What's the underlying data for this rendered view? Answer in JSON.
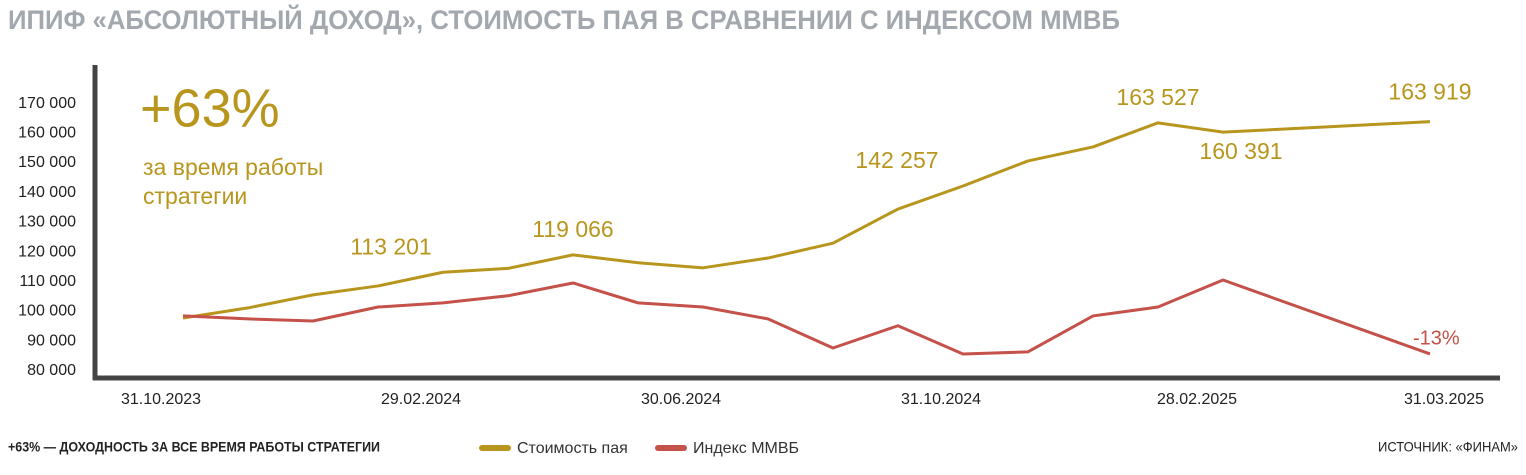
{
  "chart_data": {
    "type": "line",
    "title": "ИПИФ «АБСОЛЮТНЫЙ ДОХОД», СТОИМОСТЬ ПАЯ В СРАВНЕНИИ С ИНДЕКСОМ ММВБ",
    "annotations": {
      "big": "+63%",
      "sub1": "за время работы",
      "sub2": "стратегии",
      "index_change": "-13%"
    },
    "footnote": "+63% — ДОХОДНОСТЬ ЗА ВСЕ ВРЕМЯ РАБОТЫ СТРАТЕГИИ",
    "source": "ИСТОЧНИК: «ФИНАМ»",
    "categories": [
      "31.10.2023",
      null,
      null,
      null,
      "29.02.2024",
      null,
      null,
      null,
      "30.06.2024",
      null,
      null,
      null,
      "31.10.2024",
      null,
      null,
      null,
      "28.02.2025",
      "31.03.2025"
    ],
    "series": [
      {
        "name": "Стоимость пая",
        "color": "#b8961e",
        "values": [
          97800,
          101200,
          105600,
          108600,
          113201,
          114500,
          119066,
          116400,
          114700,
          118000,
          123000,
          134500,
          142257,
          150700,
          155400,
          163527,
          160391,
          163919
        ],
        "value_labels": [
          null,
          null,
          null,
          null,
          "113 201",
          null,
          "119 066",
          null,
          null,
          null,
          null,
          null,
          "142 257",
          null,
          null,
          "163 527",
          "160 391",
          "163 919"
        ]
      },
      {
        "name": "Индекс ММВБ",
        "color": "#c4514a",
        "values": [
          98500,
          97500,
          96800,
          101500,
          102900,
          105300,
          109600,
          102900,
          101500,
          97500,
          87700,
          95200,
          85700,
          86400,
          98500,
          101500,
          110600,
          85700
        ]
      }
    ],
    "ylim": [
      77600,
      183000
    ],
    "yticks": [
      {
        "value": 80000,
        "label": "80 000"
      },
      {
        "value": 90000,
        "label": "90 000"
      },
      {
        "value": 100000,
        "label": "100 000"
      },
      {
        "value": 110000,
        "label": "110 000"
      },
      {
        "value": 120000,
        "label": "120 000"
      },
      {
        "value": 130000,
        "label": "130 000"
      },
      {
        "value": 140000,
        "label": "140 000"
      },
      {
        "value": 150000,
        "label": "150 000"
      },
      {
        "value": 160000,
        "label": "160 000"
      },
      {
        "value": 170000,
        "label": "170 000"
      }
    ],
    "grid": false
  }
}
